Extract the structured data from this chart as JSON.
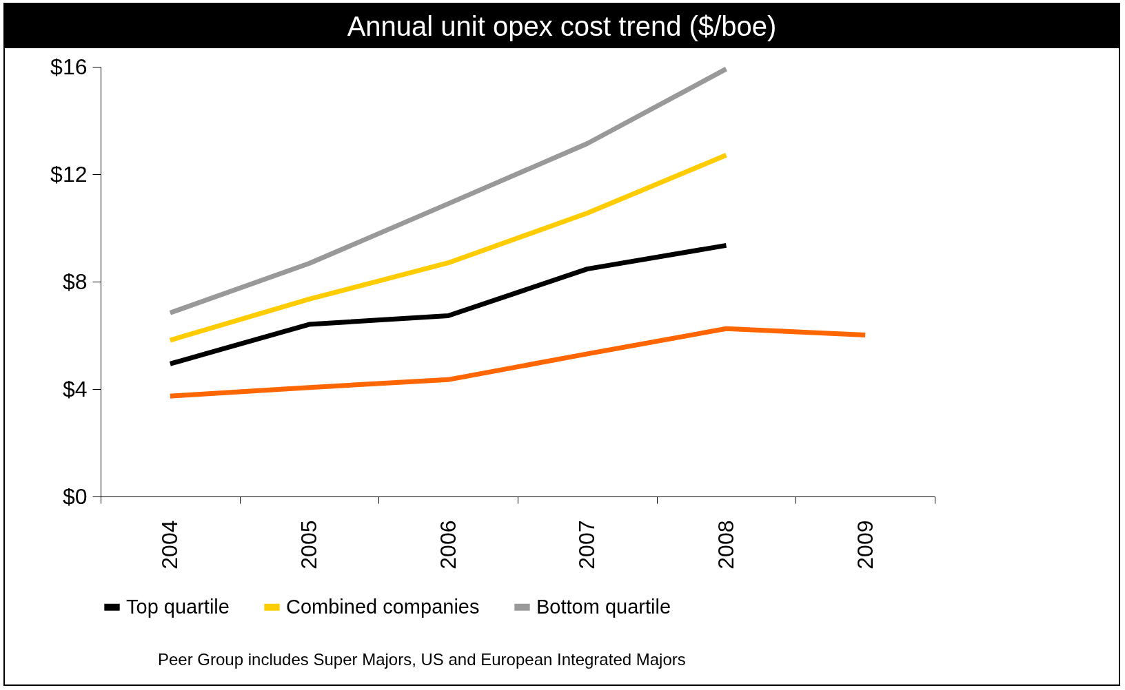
{
  "chart_data": {
    "type": "line",
    "title": "Annual unit opex cost trend ($/boe)",
    "categories": [
      "2004",
      "2005",
      "2006",
      "2007",
      "2008",
      "2009"
    ],
    "series": [
      {
        "color": "#ff6600",
        "values": [
          3.74,
          4.06,
          4.35,
          5.31,
          6.25,
          6.01
        ]
      },
      {
        "name": "Top quartile",
        "color": "#000000",
        "values": [
          4.94,
          6.41,
          6.73,
          8.47,
          9.35,
          null
        ]
      },
      {
        "name": "Combined companies",
        "color": "#ffcc00",
        "values": [
          5.82,
          7.35,
          8.7,
          10.55,
          12.71,
          null
        ]
      },
      {
        "name": "Bottom quartile",
        "color": "#999999",
        "values": [
          6.84,
          8.68,
          10.9,
          13.14,
          15.92,
          null
        ]
      }
    ],
    "ylim": [
      0,
      16
    ],
    "yticks": [
      {
        "value": 0,
        "label": "$0"
      },
      {
        "value": 4,
        "label": "$4"
      },
      {
        "value": 8,
        "label": "$8"
      },
      {
        "value": 12,
        "label": "$12"
      },
      {
        "value": 16,
        "label": "$16"
      }
    ],
    "grid": false,
    "legend": "bottom",
    "marker": "none",
    "line_style": "solid",
    "annotations": [
      "Peer Group includes Super Majors, US and European Integrated Majors"
    ]
  }
}
